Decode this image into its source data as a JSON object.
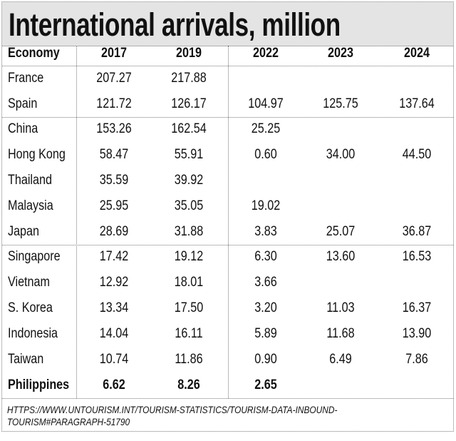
{
  "chart_data": {
    "type": "table",
    "title": "International arrivals, million",
    "columns": [
      "Economy",
      "2017",
      "2019",
      "2022",
      "2023",
      "2024"
    ],
    "groups": [
      [
        {
          "economy": "France",
          "values": [
            "207.27",
            "217.88",
            "",
            "",
            ""
          ]
        },
        {
          "economy": "Spain",
          "values": [
            "121.72",
            "126.17",
            "104.97",
            "125.75",
            "137.64"
          ]
        }
      ],
      [
        {
          "economy": "China",
          "values": [
            "153.26",
            "162.54",
            "25.25",
            "",
            ""
          ]
        },
        {
          "economy": "Hong Kong",
          "values": [
            "58.47",
            "55.91",
            "0.60",
            "34.00",
            "44.50"
          ]
        },
        {
          "economy": "Thailand",
          "values": [
            "35.59",
            "39.92",
            "",
            "",
            ""
          ]
        },
        {
          "economy": "Malaysia",
          "values": [
            "25.95",
            "35.05",
            "19.02",
            "",
            ""
          ]
        },
        {
          "economy": "Japan",
          "values": [
            "28.69",
            "31.88",
            "3.83",
            "25.07",
            "36.87"
          ]
        }
      ],
      [
        {
          "economy": "Singapore",
          "values": [
            "17.42",
            "19.12",
            "6.30",
            "13.60",
            "16.53"
          ]
        },
        {
          "economy": "Vietnam",
          "values": [
            "12.92",
            "18.01",
            "3.66",
            "",
            ""
          ]
        },
        {
          "economy": "S. Korea",
          "values": [
            "13.34",
            "17.50",
            "3.20",
            "11.03",
            "16.37"
          ]
        },
        {
          "economy": "Indonesia",
          "values": [
            "14.04",
            "16.11",
            "5.89",
            "11.68",
            "13.90"
          ]
        },
        {
          "economy": "Taiwan",
          "values": [
            "10.74",
            "11.86",
            "0.90",
            "6.49",
            "7.86"
          ]
        },
        {
          "economy": "Philippines",
          "values": [
            "6.62",
            "8.26",
            "2.65",
            "",
            ""
          ],
          "highlighted": true
        }
      ]
    ],
    "source": "HTTPS://WWW.UNTOURISM.INT/TOURISM-STATISTICS/TOURISM-DATA-INBOUND-TOURISM#PARAGRAPH-51790",
    "colors": {
      "title_band": "#e4e4e4",
      "text": "#111111",
      "rules": "#777777"
    }
  }
}
